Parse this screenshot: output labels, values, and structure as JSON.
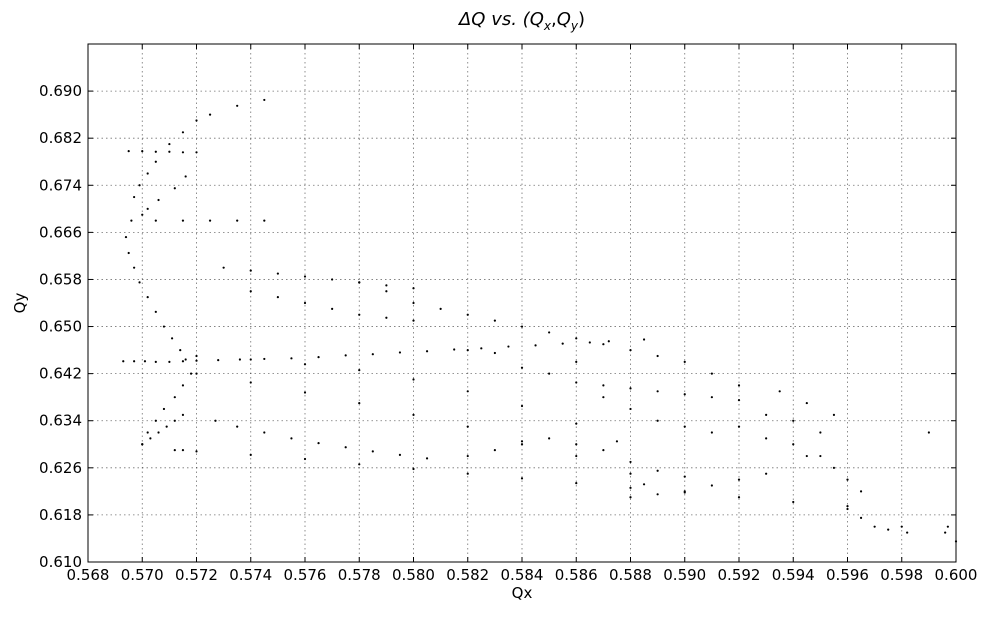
{
  "chart_data": {
    "type": "scatter",
    "title": "ΔQ vs. (Qx,Qy)",
    "title_parts": {
      "prefix": "ΔQ vs. (",
      "qx_main": "Q",
      "qx_sub": "x",
      "comma": ",",
      "qy_main": "Q",
      "qy_sub": "y",
      "suffix": ")"
    },
    "xlabel": "Qx",
    "ylabel": "Qy",
    "xlim": [
      0.568,
      0.6
    ],
    "ylim": [
      0.61,
      0.698
    ],
    "grid": true,
    "legend": "none",
    "marker_color": "#000000",
    "xticks": [
      "0.568",
      "0.570",
      "0.572",
      "0.574",
      "0.576",
      "0.578",
      "0.580",
      "0.582",
      "0.584",
      "0.586",
      "0.588",
      "0.590",
      "0.592",
      "0.594",
      "0.596",
      "0.598",
      "0.600"
    ],
    "yticks": [
      "0.610",
      "0.618",
      "0.626",
      "0.634",
      "0.642",
      "0.650",
      "0.658",
      "0.666",
      "0.674",
      "0.682",
      "0.690"
    ],
    "series": [
      {
        "points": [
          [
            0.5693,
            0.6441
          ],
          [
            0.5697,
            0.6441
          ],
          [
            0.5701,
            0.6441
          ],
          [
            0.5705,
            0.644
          ],
          [
            0.571,
            0.644
          ],
          [
            0.5715,
            0.6441
          ],
          [
            0.572,
            0.6442
          ],
          [
            0.5728,
            0.6443
          ],
          [
            0.5736,
            0.6444
          ],
          [
            0.5745,
            0.6445
          ],
          [
            0.5755,
            0.6446
          ],
          [
            0.5765,
            0.6448
          ],
          [
            0.5775,
            0.6451
          ],
          [
            0.5785,
            0.6453
          ],
          [
            0.5795,
            0.6456
          ],
          [
            0.5805,
            0.6458
          ],
          [
            0.5815,
            0.6461
          ],
          [
            0.5825,
            0.6463
          ],
          [
            0.5835,
            0.6466
          ],
          [
            0.5845,
            0.6468
          ],
          [
            0.5855,
            0.6471
          ],
          [
            0.5865,
            0.6473
          ],
          [
            0.5872,
            0.6475
          ],
          [
            0.5885,
            0.6478
          ],
          [
            0.5694,
            0.6652
          ],
          [
            0.5695,
            0.6625
          ],
          [
            0.5697,
            0.66
          ],
          [
            0.5699,
            0.6575
          ],
          [
            0.5702,
            0.655
          ],
          [
            0.5705,
            0.6525
          ],
          [
            0.5708,
            0.65
          ],
          [
            0.5711,
            0.648
          ],
          [
            0.5714,
            0.646
          ],
          [
            0.5716,
            0.6444
          ],
          [
            0.5718,
            0.642
          ],
          [
            0.5715,
            0.64
          ],
          [
            0.5712,
            0.638
          ],
          [
            0.5708,
            0.636
          ],
          [
            0.5705,
            0.634
          ],
          [
            0.5702,
            0.632
          ],
          [
            0.57,
            0.63
          ],
          [
            0.5712,
            0.629
          ],
          [
            0.5715,
            0.629
          ],
          [
            0.572,
            0.6288
          ],
          [
            0.574,
            0.6282
          ],
          [
            0.576,
            0.6275
          ],
          [
            0.578,
            0.6266
          ],
          [
            0.58,
            0.6258
          ],
          [
            0.582,
            0.625
          ],
          [
            0.584,
            0.6242
          ],
          [
            0.586,
            0.6234
          ],
          [
            0.588,
            0.6226
          ],
          [
            0.59,
            0.6218
          ],
          [
            0.592,
            0.621
          ],
          [
            0.594,
            0.6202
          ],
          [
            0.596,
            0.6195
          ],
          [
            0.572,
            0.642
          ],
          [
            0.574,
            0.6405
          ],
          [
            0.576,
            0.6388
          ],
          [
            0.578,
            0.637
          ],
          [
            0.58,
            0.635
          ],
          [
            0.582,
            0.633
          ],
          [
            0.584,
            0.6305
          ],
          [
            0.586,
            0.628
          ],
          [
            0.588,
            0.625
          ],
          [
            0.5885,
            0.6232
          ],
          [
            0.572,
            0.645
          ],
          [
            0.574,
            0.6444
          ],
          [
            0.576,
            0.6436
          ],
          [
            0.578,
            0.6426
          ],
          [
            0.58,
            0.641
          ],
          [
            0.582,
            0.639
          ],
          [
            0.584,
            0.6365
          ],
          [
            0.586,
            0.6335
          ],
          [
            0.5875,
            0.6305
          ],
          [
            0.5727,
            0.634
          ],
          [
            0.5735,
            0.633
          ],
          [
            0.5745,
            0.632
          ],
          [
            0.5755,
            0.631
          ],
          [
            0.5765,
            0.6302
          ],
          [
            0.5775,
            0.6295
          ],
          [
            0.5785,
            0.6288
          ],
          [
            0.5795,
            0.6282
          ],
          [
            0.5805,
            0.6276
          ],
          [
            0.574,
            0.656
          ],
          [
            0.575,
            0.655
          ],
          [
            0.576,
            0.654
          ],
          [
            0.577,
            0.653
          ],
          [
            0.578,
            0.652
          ],
          [
            0.579,
            0.6515
          ],
          [
            0.58,
            0.651
          ],
          [
            0.573,
            0.66
          ],
          [
            0.574,
            0.6595
          ],
          [
            0.575,
            0.659
          ],
          [
            0.576,
            0.6585
          ],
          [
            0.577,
            0.658
          ],
          [
            0.578,
            0.6575
          ],
          [
            0.579,
            0.657
          ],
          [
            0.58,
            0.6565
          ],
          [
            0.5695,
            0.6798
          ],
          [
            0.57,
            0.6798
          ],
          [
            0.5705,
            0.6797
          ],
          [
            0.571,
            0.6797
          ],
          [
            0.5715,
            0.6796
          ],
          [
            0.572,
            0.6796
          ],
          [
            0.5696,
            0.668
          ],
          [
            0.5705,
            0.668
          ],
          [
            0.5715,
            0.668
          ],
          [
            0.5725,
            0.668
          ],
          [
            0.5735,
            0.668
          ],
          [
            0.5745,
            0.668
          ],
          [
            0.5697,
            0.672
          ],
          [
            0.5699,
            0.674
          ],
          [
            0.5702,
            0.676
          ],
          [
            0.5705,
            0.678
          ],
          [
            0.571,
            0.681
          ],
          [
            0.5715,
            0.683
          ],
          [
            0.572,
            0.685
          ],
          [
            0.5725,
            0.686
          ],
          [
            0.5735,
            0.6875
          ],
          [
            0.5745,
            0.6885
          ],
          [
            0.57,
            0.669
          ],
          [
            0.5702,
            0.67
          ],
          [
            0.5706,
            0.6715
          ],
          [
            0.5712,
            0.6735
          ],
          [
            0.5716,
            0.6755
          ],
          [
            0.582,
            0.628
          ],
          [
            0.583,
            0.629
          ],
          [
            0.584,
            0.63
          ],
          [
            0.585,
            0.631
          ],
          [
            0.586,
            0.63
          ],
          [
            0.587,
            0.629
          ],
          [
            0.588,
            0.627
          ],
          [
            0.589,
            0.6255
          ],
          [
            0.59,
            0.6245
          ],
          [
            0.586,
            0.6405
          ],
          [
            0.587,
            0.64
          ],
          [
            0.588,
            0.6395
          ],
          [
            0.589,
            0.639
          ],
          [
            0.59,
            0.6385
          ],
          [
            0.591,
            0.638
          ],
          [
            0.592,
            0.6375
          ],
          [
            0.588,
            0.621
          ],
          [
            0.589,
            0.6215
          ],
          [
            0.59,
            0.622
          ],
          [
            0.591,
            0.623
          ],
          [
            0.592,
            0.624
          ],
          [
            0.593,
            0.625
          ],
          [
            0.582,
            0.646
          ],
          [
            0.583,
            0.6455
          ],
          [
            0.584,
            0.643
          ],
          [
            0.585,
            0.642
          ],
          [
            0.586,
            0.644
          ],
          [
            0.587,
            0.638
          ],
          [
            0.588,
            0.636
          ],
          [
            0.589,
            0.634
          ],
          [
            0.59,
            0.633
          ],
          [
            0.591,
            0.632
          ],
          [
            0.592,
            0.633
          ],
          [
            0.593,
            0.631
          ],
          [
            0.594,
            0.63
          ],
          [
            0.595,
            0.628
          ],
          [
            0.5935,
            0.639
          ],
          [
            0.5945,
            0.637
          ],
          [
            0.5955,
            0.635
          ],
          [
            0.593,
            0.635
          ],
          [
            0.594,
            0.634
          ],
          [
            0.595,
            0.632
          ],
          [
            0.5945,
            0.628
          ],
          [
            0.5955,
            0.626
          ],
          [
            0.596,
            0.624
          ],
          [
            0.5965,
            0.622
          ],
          [
            0.596,
            0.619
          ],
          [
            0.5965,
            0.6175
          ],
          [
            0.597,
            0.616
          ],
          [
            0.5975,
            0.6155
          ],
          [
            0.598,
            0.616
          ],
          [
            0.5982,
            0.615
          ],
          [
            0.599,
            0.632
          ],
          [
            0.5996,
            0.615
          ],
          [
            0.5997,
            0.616
          ],
          [
            0.6,
            0.6135
          ],
          [
            0.578,
            0.6575
          ],
          [
            0.579,
            0.656
          ],
          [
            0.58,
            0.654
          ],
          [
            0.581,
            0.653
          ],
          [
            0.582,
            0.652
          ],
          [
            0.583,
            0.651
          ],
          [
            0.584,
            0.65
          ],
          [
            0.585,
            0.649
          ],
          [
            0.586,
            0.648
          ],
          [
            0.587,
            0.647
          ],
          [
            0.588,
            0.646
          ],
          [
            0.589,
            0.645
          ],
          [
            0.59,
            0.644
          ],
          [
            0.591,
            0.642
          ],
          [
            0.592,
            0.64
          ],
          [
            0.57,
            0.63
          ],
          [
            0.5703,
            0.631
          ],
          [
            0.5706,
            0.632
          ],
          [
            0.5709,
            0.633
          ],
          [
            0.5712,
            0.634
          ],
          [
            0.5715,
            0.635
          ]
        ]
      }
    ]
  }
}
